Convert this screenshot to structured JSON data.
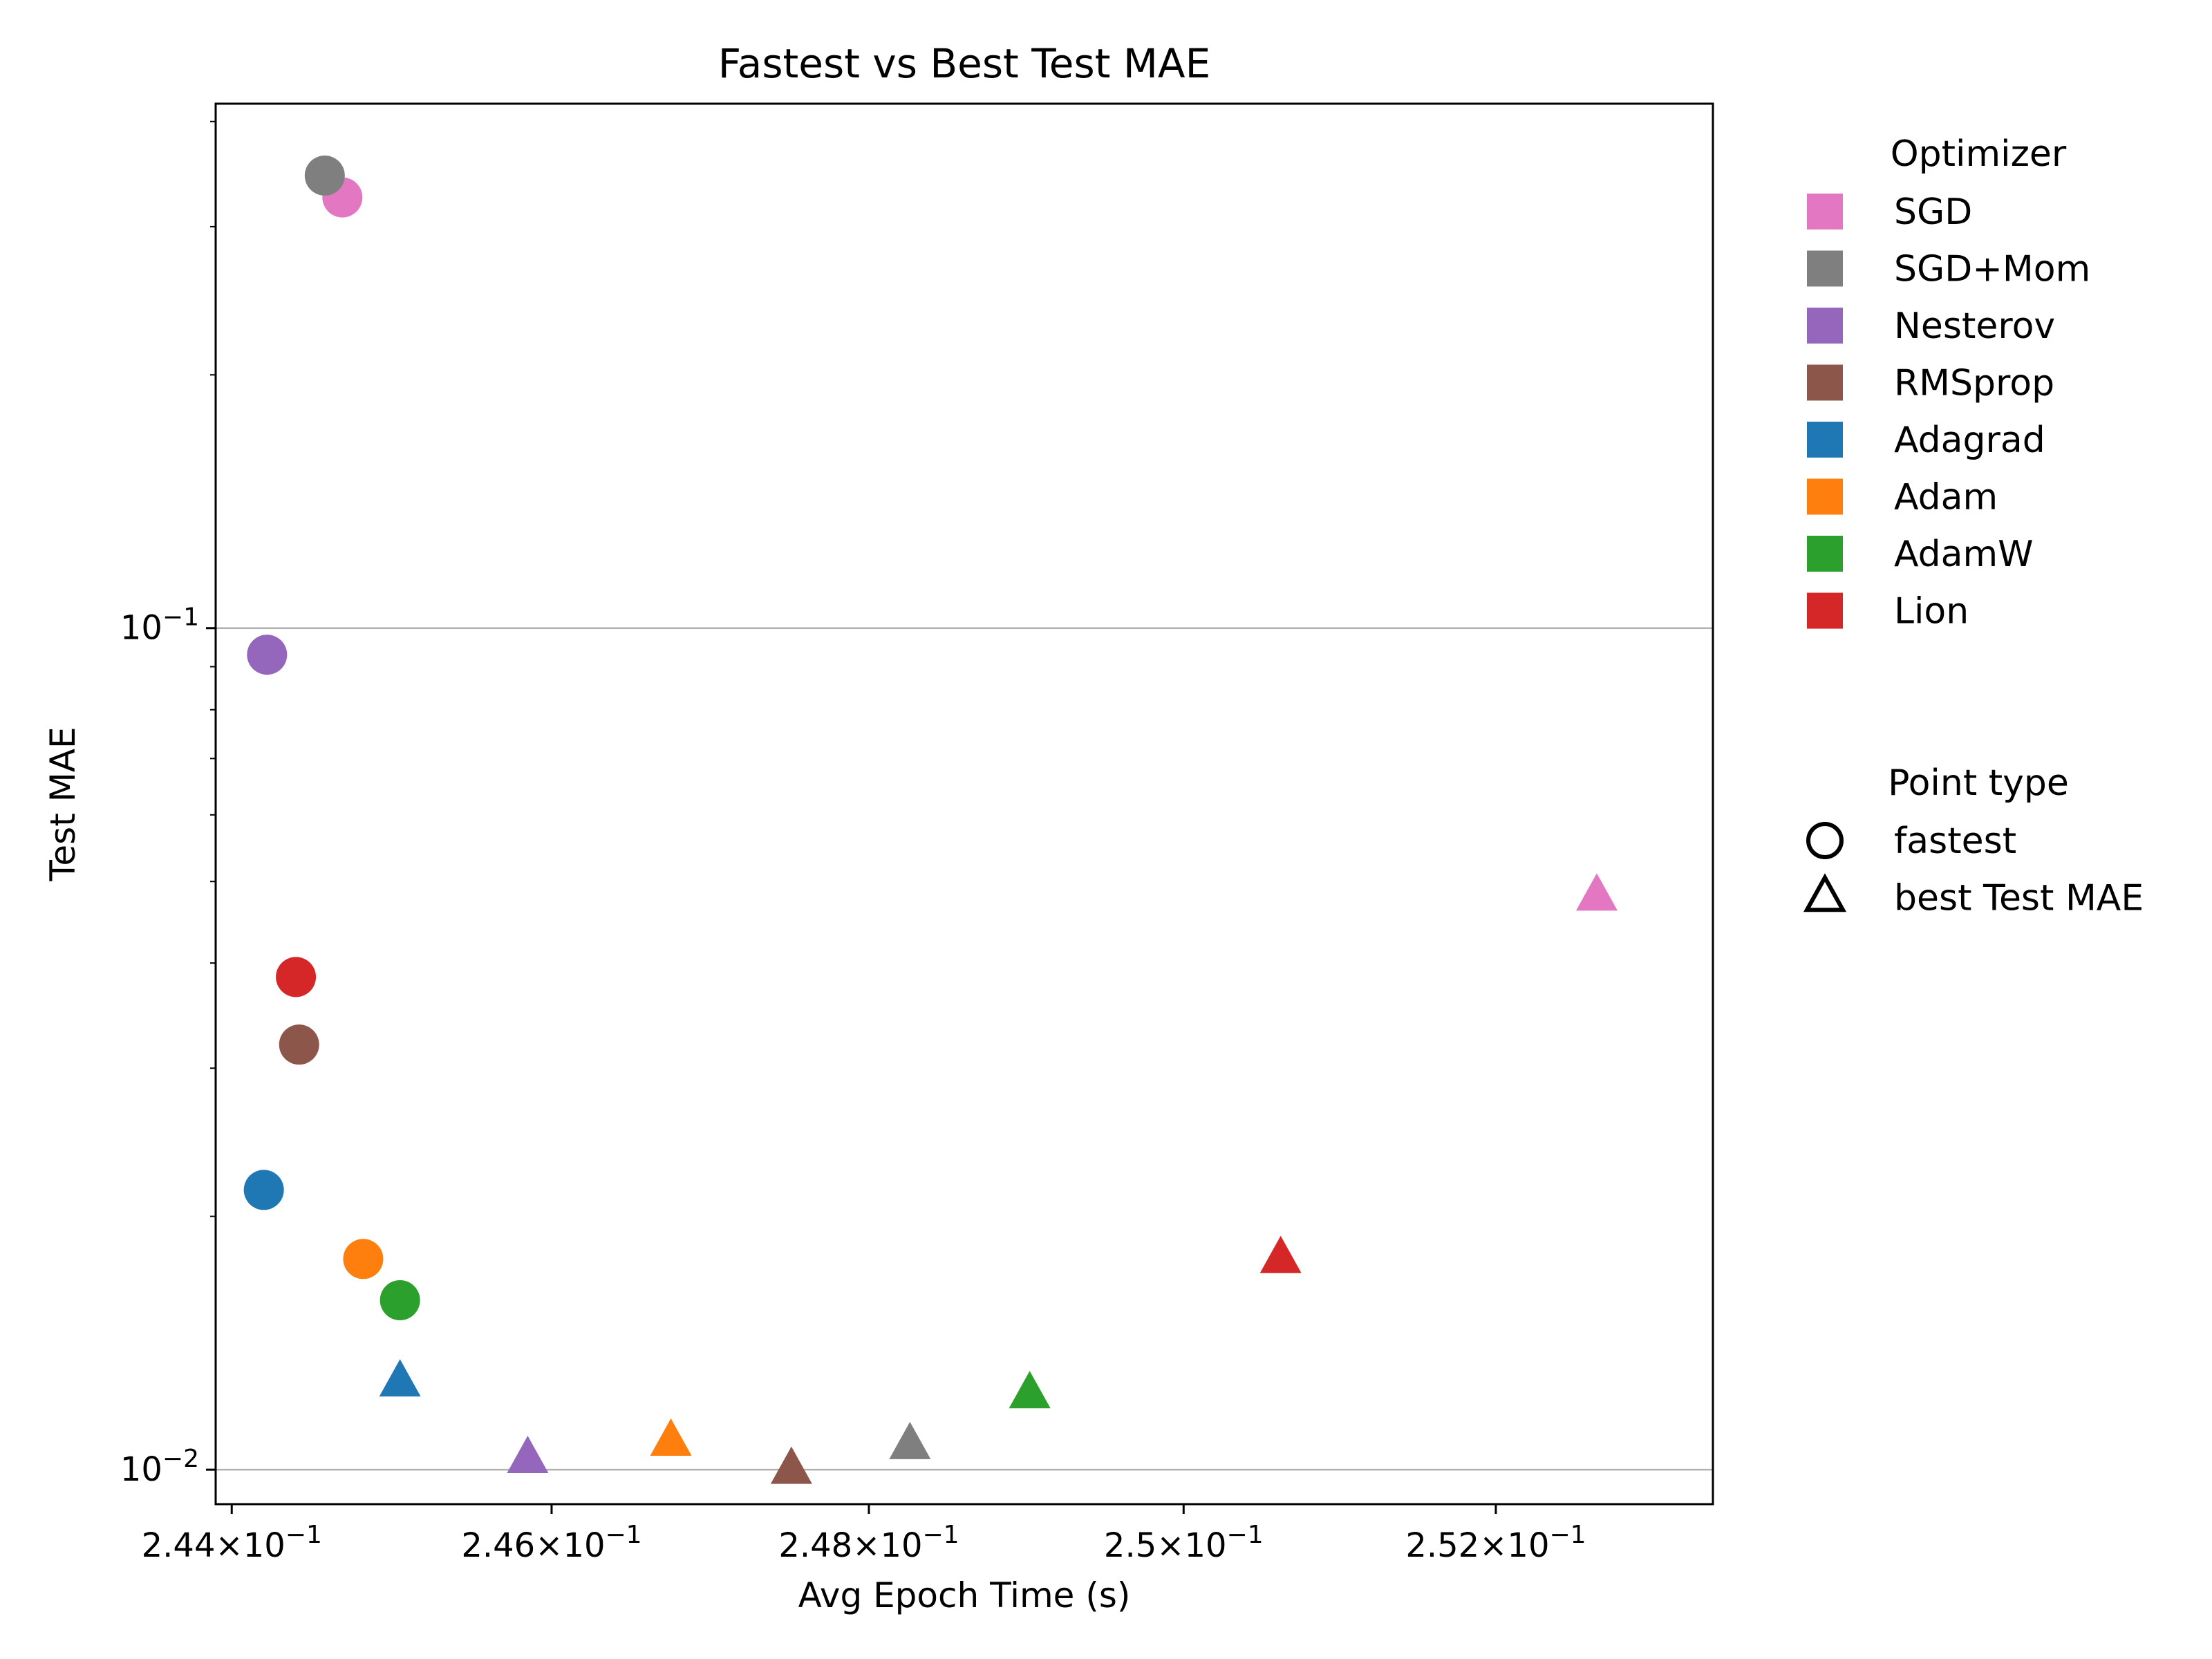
{
  "chart_data": {
    "type": "scatter",
    "title": "Fastest vs Best Test MAE",
    "xlabel": "Avg Epoch Time (s)",
    "ylabel": "Test MAE",
    "x_scale": "log",
    "y_scale": "log",
    "xlim": [
      0.2439,
      0.2534
    ],
    "ylim": [
      0.0091,
      0.42
    ],
    "x_ticks": [
      {
        "value": 0.244,
        "mantissa": "2.44"
      },
      {
        "value": 0.246,
        "mantissa": "2.46"
      },
      {
        "value": 0.248,
        "mantissa": "2.48"
      },
      {
        "value": 0.25,
        "mantissa": "2.5"
      },
      {
        "value": 0.252,
        "mantissa": "2.52"
      }
    ],
    "x_tick_suffix": "×10",
    "x_tick_exponent": "−1",
    "y_ticks": [
      {
        "value": 0.01,
        "base": "10",
        "exponent": "−2"
      },
      {
        "value": 0.1,
        "base": "10",
        "exponent": "−1"
      }
    ],
    "grid": "y-major",
    "legend_placement": "outside-right",
    "legend_title_optimizer": "Optimizer",
    "legend_title_point_type": "Point type",
    "point_types": [
      {
        "key": "fastest",
        "label": "fastest",
        "marker": "circle"
      },
      {
        "key": "best",
        "label": "best Test MAE",
        "marker": "triangle"
      }
    ],
    "series": [
      {
        "name": "SGD",
        "color": "#e377c2",
        "fastest": {
          "x": 0.24469,
          "y": 0.325
        },
        "best": {
          "x": 0.25265,
          "y": 0.048
        }
      },
      {
        "name": "SGD+Mom",
        "color": "#7f7f7f",
        "fastest": {
          "x": 0.24458,
          "y": 0.345
        },
        "best": {
          "x": 0.24826,
          "y": 0.0107
        }
      },
      {
        "name": "Nesterov",
        "color": "#9467bd",
        "fastest": {
          "x": 0.24422,
          "y": 0.093
        },
        "best": {
          "x": 0.24585,
          "y": 0.0103
        }
      },
      {
        "name": "RMSprop",
        "color": "#8c564b",
        "fastest": {
          "x": 0.24442,
          "y": 0.032
        },
        "best": {
          "x": 0.24751,
          "y": 0.01
        }
      },
      {
        "name": "Adagrad",
        "color": "#1f77b4",
        "fastest": {
          "x": 0.2442,
          "y": 0.0215
        },
        "best": {
          "x": 0.24505,
          "y": 0.0127
        }
      },
      {
        "name": "Adam",
        "color": "#ff7f0e",
        "fastest": {
          "x": 0.24482,
          "y": 0.0178
        },
        "best": {
          "x": 0.24675,
          "y": 0.0108
        }
      },
      {
        "name": "AdamW",
        "color": "#2ca02c",
        "fastest": {
          "x": 0.24505,
          "y": 0.0159
        },
        "best": {
          "x": 0.24902,
          "y": 0.0123
        }
      },
      {
        "name": "Lion",
        "color": "#d62728",
        "fastest": {
          "x": 0.2444,
          "y": 0.0385
        },
        "best": {
          "x": 0.25062,
          "y": 0.0178
        }
      }
    ]
  }
}
